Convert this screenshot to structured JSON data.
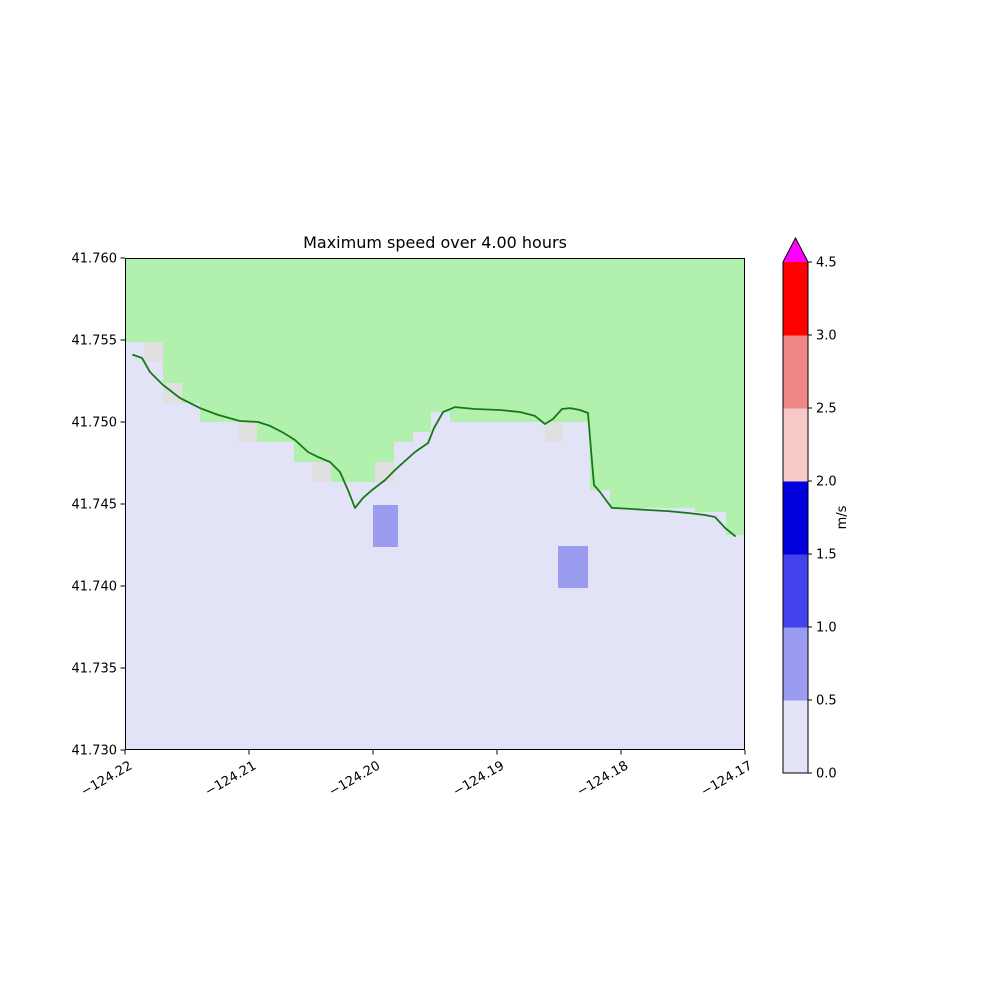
{
  "title": "Maximum speed over 4.00 hours",
  "axes": {
    "x_ticks": [
      {
        "value": -124.22,
        "label": "−124.22"
      },
      {
        "value": -124.21,
        "label": "−124.21"
      },
      {
        "value": -124.2,
        "label": "−124.20"
      },
      {
        "value": -124.19,
        "label": "−124.19"
      },
      {
        "value": -124.18,
        "label": "−124.18"
      },
      {
        "value": -124.17,
        "label": "−124.17"
      }
    ],
    "y_ticks": [
      {
        "value": 41.76,
        "label": "41.760"
      },
      {
        "value": 41.755,
        "label": "41.755"
      },
      {
        "value": 41.75,
        "label": "41.750"
      },
      {
        "value": 41.745,
        "label": "41.745"
      },
      {
        "value": 41.74,
        "label": "41.740"
      },
      {
        "value": 41.735,
        "label": "41.735"
      },
      {
        "value": 41.73,
        "label": "41.730"
      }
    ]
  },
  "colorbar": {
    "label": "m/s",
    "boundaries": [
      0.0,
      0.5,
      1.0,
      1.5,
      2.0,
      2.5,
      3.0,
      4.5
    ],
    "tick_labels": [
      "0.0",
      "0.5",
      "1.0",
      "1.5",
      "2.0",
      "2.5",
      "3.0",
      "4.5"
    ],
    "segment_colors": [
      "#e3e3f7",
      "#9b9bef",
      "#4343ee",
      "#0000dd",
      "#f7caca",
      "#ee8787",
      "#fe0000"
    ],
    "over_color": "#ff00ff"
  },
  "chart_data": {
    "type": "heatmap",
    "title": "Maximum speed over 4.00 hours",
    "units": "m/s",
    "xlabel": "",
    "ylabel": "",
    "x_range": [
      -124.22,
      -124.17
    ],
    "y_range": [
      41.73,
      41.76
    ],
    "grid": false,
    "colors": {
      "land": "#b2f0ad",
      "water_low": "#e3e3f7",
      "shore_cell": "#e0e0e0",
      "speed_mid": "#9b9bef",
      "coastline": "#157a15"
    },
    "land_edge": [
      [
        -124.22,
        41.75488
      ],
      [
        -124.21847,
        41.75488
      ],
      [
        -124.21847,
        41.75366
      ],
      [
        -124.21694,
        41.75366
      ],
      [
        -124.21694,
        41.75238
      ],
      [
        -124.2154,
        41.75238
      ],
      [
        -124.2154,
        41.75116
      ],
      [
        -124.21395,
        41.75116
      ],
      [
        -124.21395,
        41.75
      ],
      [
        -124.21089,
        41.75
      ],
      [
        -124.21089,
        41.74878
      ],
      [
        -124.20637,
        41.74878
      ],
      [
        -124.20637,
        41.74756
      ],
      [
        -124.20339,
        41.74756
      ],
      [
        -124.20339,
        41.74634
      ],
      [
        -124.19984,
        41.74634
      ],
      [
        -124.19984,
        41.74756
      ],
      [
        -124.19831,
        41.74756
      ],
      [
        -124.19831,
        41.74878
      ],
      [
        -124.19677,
        41.74878
      ],
      [
        -124.19677,
        41.74939
      ],
      [
        -124.19532,
        41.74939
      ],
      [
        -124.19532,
        41.75061
      ],
      [
        -124.19379,
        41.75061
      ],
      [
        -124.19379,
        41.75
      ],
      [
        -124.1825,
        41.75
      ],
      [
        -124.1825,
        41.74585
      ],
      [
        -124.18089,
        41.74585
      ],
      [
        -124.18089,
        41.74476
      ],
      [
        -124.17403,
        41.74476
      ],
      [
        -124.17403,
        41.74451
      ],
      [
        -124.17153,
        41.74451
      ],
      [
        -124.17153,
        41.74311
      ],
      [
        -124.17,
        41.74311
      ]
    ],
    "shore_cells": [
      {
        "lon_min": -124.21847,
        "lon_max": -124.21694,
        "lat_min": 41.75366,
        "lat_max": 41.75488
      },
      {
        "lon_min": -124.21694,
        "lon_max": -124.2154,
        "lat_min": 41.75116,
        "lat_max": 41.75238
      },
      {
        "lon_min": -124.21089,
        "lon_max": -124.20936,
        "lat_min": 41.74878,
        "lat_max": 41.75
      },
      {
        "lon_min": -124.20492,
        "lon_max": -124.20339,
        "lat_min": 41.74634,
        "lat_max": 41.74756
      },
      {
        "lon_min": -124.19984,
        "lon_max": -124.19831,
        "lat_min": 41.74634,
        "lat_max": 41.74756
      },
      {
        "lon_min": -124.18613,
        "lon_max": -124.18468,
        "lat_min": 41.74878,
        "lat_max": 41.75
      }
    ],
    "speed_cells": [
      {
        "lon_min": -124.2,
        "lon_max": -124.19798,
        "lat_min": 41.74238,
        "lat_max": 41.74494,
        "value_range": "0.5-1.0"
      },
      {
        "lon_min": -124.18508,
        "lon_max": -124.18266,
        "lat_min": 41.73988,
        "lat_max": 41.74244,
        "value_range": "0.5-1.0"
      }
    ],
    "coastline": [
      [
        -124.21935,
        41.75409
      ],
      [
        -124.21863,
        41.7539
      ],
      [
        -124.21798,
        41.75305
      ],
      [
        -124.21694,
        41.75226
      ],
      [
        -124.21556,
        41.75146
      ],
      [
        -124.21395,
        41.75085
      ],
      [
        -124.2125,
        41.75043
      ],
      [
        -124.21073,
        41.75006
      ],
      [
        -124.20927,
        41.75
      ],
      [
        -124.20831,
        41.74976
      ],
      [
        -124.20734,
        41.74939
      ],
      [
        -124.20629,
        41.7489
      ],
      [
        -124.20524,
        41.74817
      ],
      [
        -124.20444,
        41.74787
      ],
      [
        -124.20347,
        41.74756
      ],
      [
        -124.20266,
        41.74695
      ],
      [
        -124.20202,
        41.74585
      ],
      [
        -124.20145,
        41.74476
      ],
      [
        -124.20081,
        41.74537
      ],
      [
        -124.20008,
        41.74585
      ],
      [
        -124.19903,
        41.74646
      ],
      [
        -124.19823,
        41.74707
      ],
      [
        -124.19661,
        41.74817
      ],
      [
        -124.19556,
        41.74872
      ],
      [
        -124.19508,
        41.74963
      ],
      [
        -124.19435,
        41.75061
      ],
      [
        -124.19339,
        41.75091
      ],
      [
        -124.19177,
        41.75079
      ],
      [
        -124.18976,
        41.75073
      ],
      [
        -124.18815,
        41.75061
      ],
      [
        -124.18694,
        41.75037
      ],
      [
        -124.18613,
        41.74988
      ],
      [
        -124.18548,
        41.75018
      ],
      [
        -124.18476,
        41.75079
      ],
      [
        -124.18411,
        41.75085
      ],
      [
        -124.18331,
        41.75073
      ],
      [
        -124.18266,
        41.75055
      ],
      [
        -124.18242,
        41.74829
      ],
      [
        -124.18218,
        41.74616
      ],
      [
        -124.18169,
        41.74573
      ],
      [
        -124.18121,
        41.74524
      ],
      [
        -124.18073,
        41.74476
      ],
      [
        -124.17927,
        41.7447
      ],
      [
        -124.17766,
        41.74463
      ],
      [
        -124.17621,
        41.74457
      ],
      [
        -124.1746,
        41.74445
      ],
      [
        -124.17323,
        41.74433
      ],
      [
        -124.17242,
        41.74421
      ],
      [
        -124.17161,
        41.74354
      ],
      [
        -124.17081,
        41.74305
      ]
    ]
  }
}
